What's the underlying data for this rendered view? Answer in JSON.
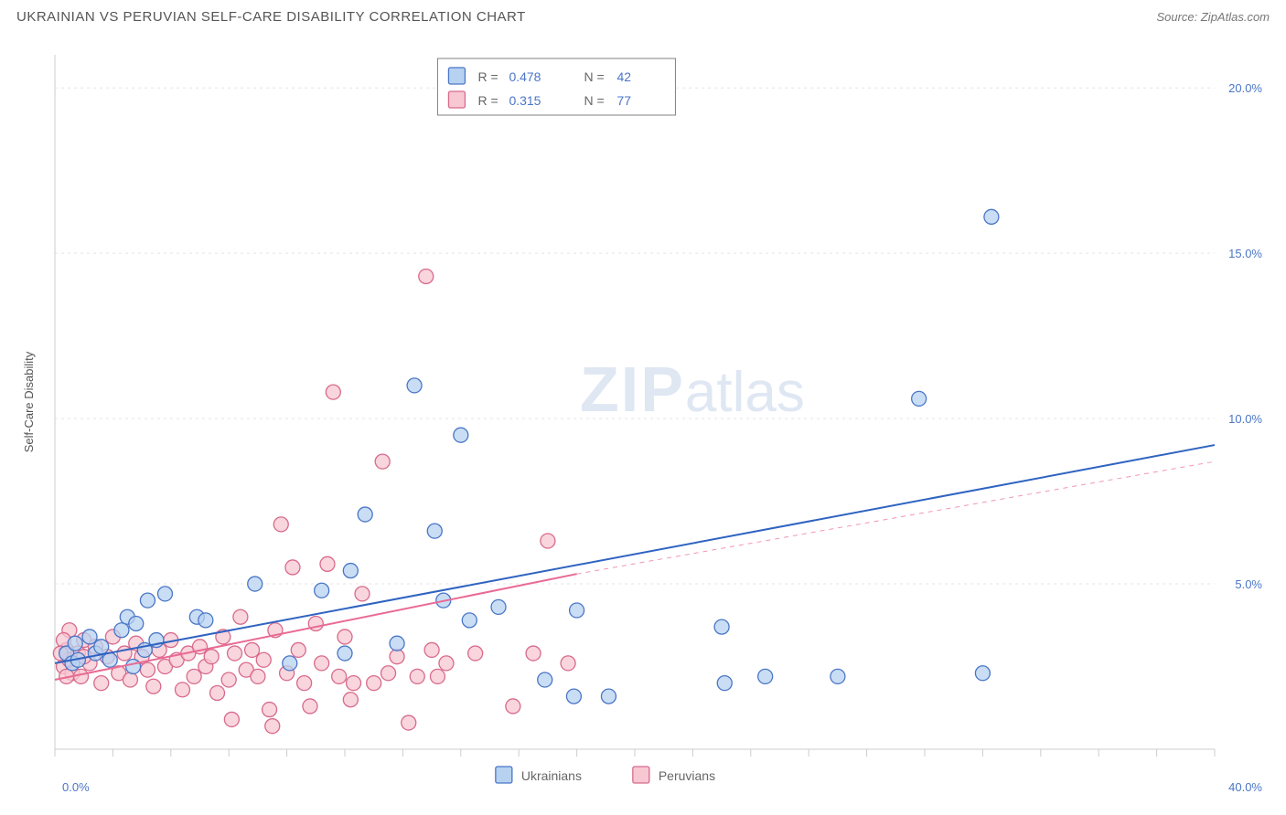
{
  "title": "UKRAINIAN VS PERUVIAN SELF-CARE DISABILITY CORRELATION CHART",
  "source": "Source: ZipAtlas.com",
  "watermark": {
    "main": "ZIP",
    "sub": "atlas"
  },
  "chart": {
    "type": "scatter",
    "xlim": [
      0,
      40
    ],
    "ylim": [
      0,
      21
    ],
    "y_axis_label": "Self-Care Disability",
    "x_ticks": [
      0,
      2,
      4,
      6,
      8,
      10,
      12,
      14,
      16,
      18,
      20,
      22,
      24,
      26,
      28,
      30,
      32,
      34,
      36,
      38,
      40
    ],
    "y_gridlines": [
      5,
      10,
      15,
      20
    ],
    "y_tick_labels": [
      {
        "y": 20,
        "txt": "20.0%"
      },
      {
        "y": 15,
        "txt": "15.0%"
      },
      {
        "y": 10,
        "txt": "10.0%"
      },
      {
        "y": 5,
        "txt": "5.0%"
      }
    ],
    "x_origin_label": "0.0%",
    "x_max_label": "40.0%",
    "gridline_color": "#e5e5e5",
    "axis_color": "#cccccc",
    "label_color": "#4a76c7",
    "background_color": "#ffffff",
    "axis_font_size": 13,
    "ylabel_font_size": 13
  },
  "legend_top": {
    "border_color": "#808080",
    "rows": [
      {
        "swatch_fill": "#b7d2f0",
        "swatch_stroke": "#4a76c7",
        "R_label": "R =",
        "R_val": "0.478",
        "N_label": "N =",
        "N_val": "42"
      },
      {
        "swatch_fill": "#f7c7d2",
        "swatch_stroke": "#d86a8c",
        "R_label": "R =",
        "R_val": "0.315",
        "N_label": "N =",
        "N_val": "77"
      }
    ],
    "text_color": "#666666",
    "val_color": "#4a76c7",
    "font_size": 14
  },
  "legend_bottom": {
    "items": [
      {
        "swatch_fill": "#b7d2f0",
        "swatch_stroke": "#4a76c7",
        "label": "Ukrainians"
      },
      {
        "swatch_fill": "#f7c7d2",
        "swatch_stroke": "#d86a8c",
        "label": "Peruvians"
      }
    ],
    "text_color": "#666666",
    "font_size": 14
  },
  "series": [
    {
      "name": "Ukrainians",
      "marker_fill": "#b7d2f0",
      "marker_stroke": "#4a76c7",
      "marker_radius": 8,
      "marker_opacity": 0.75,
      "trend": {
        "x1": 0,
        "y1": 2.6,
        "x2": 40,
        "y2": 9.2,
        "stroke": "#2f63c1",
        "width": 2,
        "dash_extension": null
      },
      "points": [
        {
          "x": 0.4,
          "y": 2.9
        },
        {
          "x": 0.6,
          "y": 2.6
        },
        {
          "x": 0.7,
          "y": 3.2
        },
        {
          "x": 0.8,
          "y": 2.7
        },
        {
          "x": 1.2,
          "y": 3.4
        },
        {
          "x": 1.4,
          "y": 2.9
        },
        {
          "x": 1.6,
          "y": 3.1
        },
        {
          "x": 1.9,
          "y": 2.7
        },
        {
          "x": 2.3,
          "y": 3.6
        },
        {
          "x": 2.5,
          "y": 4.0
        },
        {
          "x": 2.7,
          "y": 2.5
        },
        {
          "x": 2.8,
          "y": 3.8
        },
        {
          "x": 3.1,
          "y": 3.0
        },
        {
          "x": 3.2,
          "y": 4.5
        },
        {
          "x": 3.5,
          "y": 3.3
        },
        {
          "x": 3.8,
          "y": 4.7
        },
        {
          "x": 4.9,
          "y": 4.0
        },
        {
          "x": 5.2,
          "y": 3.9
        },
        {
          "x": 6.9,
          "y": 5.0
        },
        {
          "x": 8.1,
          "y": 2.6
        },
        {
          "x": 9.2,
          "y": 4.8
        },
        {
          "x": 10.0,
          "y": 2.9
        },
        {
          "x": 10.2,
          "y": 5.4
        },
        {
          "x": 10.7,
          "y": 7.1
        },
        {
          "x": 11.8,
          "y": 3.2
        },
        {
          "x": 12.4,
          "y": 11.0
        },
        {
          "x": 13.1,
          "y": 6.6
        },
        {
          "x": 13.4,
          "y": 4.5
        },
        {
          "x": 14.0,
          "y": 9.5
        },
        {
          "x": 14.3,
          "y": 3.9
        },
        {
          "x": 15.3,
          "y": 4.3
        },
        {
          "x": 16.9,
          "y": 2.1
        },
        {
          "x": 17.9,
          "y": 1.6
        },
        {
          "x": 18.0,
          "y": 4.2
        },
        {
          "x": 19.1,
          "y": 1.6
        },
        {
          "x": 23.0,
          "y": 3.7
        },
        {
          "x": 24.5,
          "y": 2.2
        },
        {
          "x": 27.0,
          "y": 2.2
        },
        {
          "x": 29.8,
          "y": 10.6
        },
        {
          "x": 32.0,
          "y": 2.3
        },
        {
          "x": 32.3,
          "y": 16.1
        },
        {
          "x": 23.1,
          "y": 2.0
        }
      ]
    },
    {
      "name": "Peruvians",
      "marker_fill": "#f7c7d2",
      "marker_stroke": "#d86a8c",
      "marker_radius": 8,
      "marker_opacity": 0.75,
      "trend": {
        "x1": 0,
        "y1": 2.1,
        "x2": 18,
        "y2": 5.3,
        "stroke": "#e96a94",
        "width": 2,
        "dash_extension": {
          "x1": 18,
          "y1": 5.3,
          "x2": 40,
          "y2": 8.7,
          "dash": "5,5"
        }
      },
      "points": [
        {
          "x": 0.3,
          "y": 2.5
        },
        {
          "x": 0.4,
          "y": 3.0
        },
        {
          "x": 0.5,
          "y": 2.7
        },
        {
          "x": 0.6,
          "y": 2.3
        },
        {
          "x": 0.8,
          "y": 2.9
        },
        {
          "x": 0.9,
          "y": 2.2
        },
        {
          "x": 1.0,
          "y": 3.3
        },
        {
          "x": 1.2,
          "y": 2.6
        },
        {
          "x": 1.4,
          "y": 3.1
        },
        {
          "x": 1.6,
          "y": 2.0
        },
        {
          "x": 1.8,
          "y": 2.8
        },
        {
          "x": 2.0,
          "y": 3.4
        },
        {
          "x": 2.2,
          "y": 2.3
        },
        {
          "x": 2.4,
          "y": 2.9
        },
        {
          "x": 2.6,
          "y": 2.1
        },
        {
          "x": 2.8,
          "y": 3.2
        },
        {
          "x": 3.0,
          "y": 2.8
        },
        {
          "x": 3.2,
          "y": 2.4
        },
        {
          "x": 3.4,
          "y": 1.9
        },
        {
          "x": 3.6,
          "y": 3.0
        },
        {
          "x": 3.8,
          "y": 2.5
        },
        {
          "x": 4.0,
          "y": 3.3
        },
        {
          "x": 4.2,
          "y": 2.7
        },
        {
          "x": 4.4,
          "y": 1.8
        },
        {
          "x": 4.6,
          "y": 2.9
        },
        {
          "x": 4.8,
          "y": 2.2
        },
        {
          "x": 5.0,
          "y": 3.1
        },
        {
          "x": 5.2,
          "y": 2.5
        },
        {
          "x": 5.4,
          "y": 2.8
        },
        {
          "x": 5.6,
          "y": 1.7
        },
        {
          "x": 5.8,
          "y": 3.4
        },
        {
          "x": 6.0,
          "y": 2.1
        },
        {
          "x": 6.2,
          "y": 2.9
        },
        {
          "x": 6.4,
          "y": 4.0
        },
        {
          "x": 6.6,
          "y": 2.4
        },
        {
          "x": 6.8,
          "y": 3.0
        },
        {
          "x": 7.0,
          "y": 2.2
        },
        {
          "x": 7.2,
          "y": 2.7
        },
        {
          "x": 7.4,
          "y": 1.2
        },
        {
          "x": 7.6,
          "y": 3.6
        },
        {
          "x": 7.8,
          "y": 6.8
        },
        {
          "x": 8.0,
          "y": 2.3
        },
        {
          "x": 8.2,
          "y": 5.5
        },
        {
          "x": 8.4,
          "y": 3.0
        },
        {
          "x": 8.6,
          "y": 2.0
        },
        {
          "x": 9.0,
          "y": 3.8
        },
        {
          "x": 9.2,
          "y": 2.6
        },
        {
          "x": 9.4,
          "y": 5.6
        },
        {
          "x": 9.6,
          "y": 10.8
        },
        {
          "x": 9.8,
          "y": 2.2
        },
        {
          "x": 10.0,
          "y": 3.4
        },
        {
          "x": 10.3,
          "y": 2.0
        },
        {
          "x": 10.6,
          "y": 4.7
        },
        {
          "x": 11.0,
          "y": 2.0
        },
        {
          "x": 11.3,
          "y": 8.7
        },
        {
          "x": 11.5,
          "y": 2.3
        },
        {
          "x": 11.8,
          "y": 2.8
        },
        {
          "x": 12.2,
          "y": 0.8
        },
        {
          "x": 12.5,
          "y": 2.2
        },
        {
          "x": 12.8,
          "y": 14.3
        },
        {
          "x": 13.0,
          "y": 3.0
        },
        {
          "x": 13.2,
          "y": 2.2
        },
        {
          "x": 13.5,
          "y": 2.6
        },
        {
          "x": 7.5,
          "y": 0.7
        },
        {
          "x": 6.1,
          "y": 0.9
        },
        {
          "x": 8.8,
          "y": 1.3
        },
        {
          "x": 10.2,
          "y": 1.5
        },
        {
          "x": 14.5,
          "y": 2.9
        },
        {
          "x": 15.8,
          "y": 1.3
        },
        {
          "x": 16.5,
          "y": 2.9
        },
        {
          "x": 17.0,
          "y": 6.3
        },
        {
          "x": 17.7,
          "y": 2.6
        },
        {
          "x": 0.5,
          "y": 3.6
        },
        {
          "x": 1.0,
          "y": 2.8
        },
        {
          "x": 0.4,
          "y": 2.2
        },
        {
          "x": 0.3,
          "y": 3.3
        },
        {
          "x": 0.2,
          "y": 2.9
        }
      ]
    }
  ]
}
